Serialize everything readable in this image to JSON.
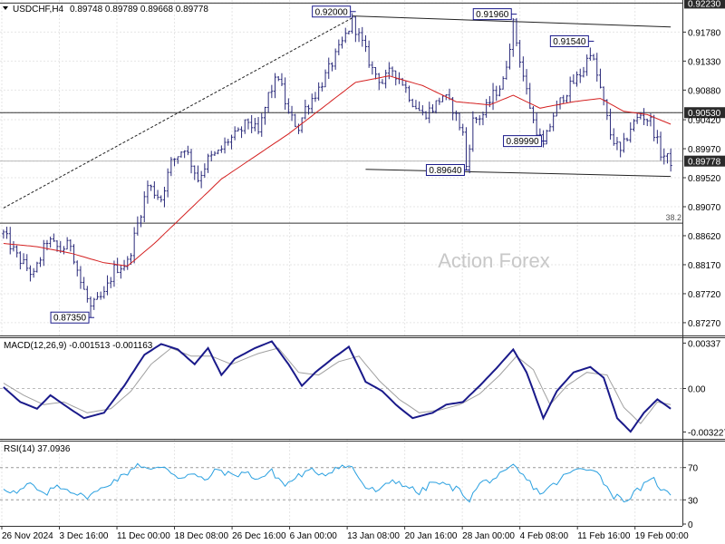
{
  "header": {
    "symbol": "USDCHF,H4",
    "ohlc": "0.89748 0.89789 0.89668 0.89778"
  },
  "watermark": "Action Forex",
  "colors": {
    "candle": "#2a2a7a",
    "ma": "#d42020",
    "macd": "#1a1a8a",
    "signal": "#a0a0a0",
    "grid": "#e6e6e6",
    "label_border": "#1a1a8a",
    "axis": "#333333"
  },
  "chart_data": [
    {
      "type": "line",
      "title": "USDCHF,H4",
      "price_axis": {
        "ticks": [
          "0.92230",
          "0.91780",
          "0.91330",
          "0.90880",
          "0.90530",
          "0.90420",
          "0.89970",
          "0.89778",
          "0.89520",
          "0.89070",
          "0.88620",
          "0.88170",
          "0.87720",
          "0.87270"
        ],
        "range": [
          0.871,
          0.9225
        ],
        "current_price": "0.89778",
        "highlighted": [
          "0.92230",
          "0.90530",
          "0.89778"
        ]
      },
      "x_axis": {
        "labels": [
          "26 Nov 2024",
          "3 Dec 16:00",
          "11 Dec 00:00",
          "18 Dec 08:00",
          "26 Dec 16:00",
          "6 Jan 00:00",
          "13 Jan 08:00",
          "20 Jan 16:00",
          "28 Jan 00:00",
          "4 Feb 08:00",
          "11 Feb 16:00",
          "19 Feb 00:00"
        ],
        "bar_count": 200
      },
      "swing_labels": [
        {
          "text": "0.87350",
          "bar": 26,
          "price": 0.8735
        },
        {
          "text": "0.92000",
          "bar": 104,
          "price": 0.92
        },
        {
          "text": "0.89640",
          "bar": 138,
          "price": 0.8964
        },
        {
          "text": "0.91960",
          "bar": 152,
          "price": 0.9196
        },
        {
          "text": "0.89990",
          "bar": 161,
          "price": 0.8999
        },
        {
          "text": "0.91540",
          "bar": 175,
          "price": 0.9154
        }
      ],
      "horizontal_lines": [
        {
          "price": 0.9223,
          "label": ""
        },
        {
          "price": 0.9053,
          "label": ""
        },
        {
          "price": 0.88815,
          "label": "38.2"
        },
        {
          "price": 0.89778,
          "label": ""
        }
      ],
      "trendlines": [
        {
          "from": {
            "bar": 0,
            "price": 0.8905
          },
          "to": {
            "bar": 104,
            "price": 0.92
          },
          "style": "dashed"
        },
        {
          "from": {
            "bar": 104,
            "price": 0.9203
          },
          "to": {
            "bar": 199,
            "price": 0.9186
          },
          "style": "solid"
        },
        {
          "from": {
            "bar": 108,
            "price": 0.8965
          },
          "to": {
            "bar": 199,
            "price": 0.8954
          },
          "style": "solid"
        }
      ],
      "anchors": [
        [
          0,
          0.8865
        ],
        [
          4,
          0.883
        ],
        [
          9,
          0.88
        ],
        [
          13,
          0.8855
        ],
        [
          17,
          0.884
        ],
        [
          20,
          0.885
        ],
        [
          23,
          0.879
        ],
        [
          26,
          0.875
        ],
        [
          30,
          0.877
        ],
        [
          33,
          0.881
        ],
        [
          37,
          0.882
        ],
        [
          40,
          0.888
        ],
        [
          43,
          0.894
        ],
        [
          47,
          0.892
        ],
        [
          50,
          0.8975
        ],
        [
          54,
          0.9
        ],
        [
          58,
          0.895
        ],
        [
          61,
          0.898
        ],
        [
          64,
          0.899
        ],
        [
          67,
          0.901
        ],
        [
          70,
          0.902
        ],
        [
          73,
          0.904
        ],
        [
          76,
          0.902
        ],
        [
          79,
          0.908
        ],
        [
          82,
          0.911
        ],
        [
          85,
          0.905
        ],
        [
          88,
          0.903
        ],
        [
          90,
          0.906
        ],
        [
          94,
          0.909
        ],
        [
          97,
          0.912
        ],
        [
          100,
          0.915
        ],
        [
          104,
          0.9195
        ],
        [
          107,
          0.916
        ],
        [
          110,
          0.912
        ],
        [
          113,
          0.91
        ],
        [
          116,
          0.912
        ],
        [
          119,
          0.91
        ],
        [
          122,
          0.907
        ],
        [
          125,
          0.905
        ],
        [
          128,
          0.906
        ],
        [
          131,
          0.908
        ],
        [
          134,
          0.906
        ],
        [
          137,
          0.902
        ],
        [
          138,
          0.897
        ],
        [
          140,
          0.904
        ],
        [
          143,
          0.905
        ],
        [
          146,
          0.908
        ],
        [
          149,
          0.91
        ],
        [
          152,
          0.919
        ],
        [
          155,
          0.911
        ],
        [
          158,
          0.904
        ],
        [
          161,
          0.9
        ],
        [
          164,
          0.905
        ],
        [
          167,
          0.908
        ],
        [
          170,
          0.91
        ],
        [
          173,
          0.912
        ],
        [
          175,
          0.915
        ],
        [
          178,
          0.909
        ],
        [
          181,
          0.902
        ],
        [
          184,
          0.899
        ],
        [
          187,
          0.903
        ],
        [
          190,
          0.905
        ],
        [
          193,
          0.904
        ],
        [
          196,
          0.899
        ],
        [
          199,
          0.89778
        ]
      ],
      "ma": [
        [
          0,
          0.885
        ],
        [
          10,
          0.8845
        ],
        [
          20,
          0.8835
        ],
        [
          30,
          0.882
        ],
        [
          37,
          0.8815
        ],
        [
          45,
          0.885
        ],
        [
          55,
          0.89
        ],
        [
          65,
          0.895
        ],
        [
          75,
          0.8985
        ],
        [
          85,
          0.902
        ],
        [
          95,
          0.906
        ],
        [
          105,
          0.91
        ],
        [
          115,
          0.911
        ],
        [
          125,
          0.9095
        ],
        [
          135,
          0.907
        ],
        [
          145,
          0.9065
        ],
        [
          152,
          0.908
        ],
        [
          160,
          0.906
        ],
        [
          170,
          0.907
        ],
        [
          178,
          0.9075
        ],
        [
          185,
          0.9055
        ],
        [
          192,
          0.905
        ],
        [
          199,
          0.9035
        ]
      ]
    },
    {
      "type": "line",
      "title": "MACD(12,26,9) -0.001513 -0.001163",
      "y_ticks": [
        "0.00337",
        "0.00",
        "-0.003227"
      ],
      "range": [
        -0.0036,
        0.0036
      ],
      "macd": [
        [
          0,
          0.0001
        ],
        [
          5,
          -0.001
        ],
        [
          10,
          -0.0015
        ],
        [
          14,
          -0.0005
        ],
        [
          18,
          -0.0012
        ],
        [
          24,
          -0.0022
        ],
        [
          30,
          -0.0018
        ],
        [
          36,
          0.0002
        ],
        [
          42,
          0.0025
        ],
        [
          47,
          0.0033
        ],
        [
          52,
          0.0029
        ],
        [
          57,
          0.0018
        ],
        [
          61,
          0.003
        ],
        [
          65,
          0.001
        ],
        [
          69,
          0.0022
        ],
        [
          75,
          0.003
        ],
        [
          80,
          0.0035
        ],
        [
          85,
          0.0018
        ],
        [
          89,
          0.0002
        ],
        [
          93,
          0.0012
        ],
        [
          98,
          0.0022
        ],
        [
          103,
          0.0031
        ],
        [
          108,
          0.0005
        ],
        [
          113,
          -0.0002
        ],
        [
          117,
          -0.0012
        ],
        [
          122,
          -0.0022
        ],
        [
          128,
          -0.0018
        ],
        [
          132,
          -0.0012
        ],
        [
          137,
          -0.001
        ],
        [
          142,
          0.0002
        ],
        [
          147,
          0.0015
        ],
        [
          152,
          0.0029
        ],
        [
          156,
          0.0012
        ],
        [
          161,
          -0.0022
        ],
        [
          165,
          -0.0002
        ],
        [
          170,
          0.0012
        ],
        [
          175,
          0.0016
        ],
        [
          179,
          0.0008
        ],
        [
          183,
          -0.0022
        ],
        [
          187,
          -0.0032
        ],
        [
          191,
          -0.0018
        ],
        [
          195,
          -0.0008
        ],
        [
          199,
          -0.0015
        ]
      ],
      "signal": [
        [
          0,
          0.0004
        ],
        [
          6,
          -0.0005
        ],
        [
          12,
          -0.0012
        ],
        [
          18,
          -0.001
        ],
        [
          25,
          -0.0018
        ],
        [
          32,
          -0.0015
        ],
        [
          38,
          -0.0002
        ],
        [
          44,
          0.0018
        ],
        [
          50,
          0.003
        ],
        [
          56,
          0.0024
        ],
        [
          62,
          0.0024
        ],
        [
          68,
          0.0018
        ],
        [
          76,
          0.0026
        ],
        [
          82,
          0.003
        ],
        [
          88,
          0.0012
        ],
        [
          94,
          0.001
        ],
        [
          100,
          0.002
        ],
        [
          106,
          0.0024
        ],
        [
          112,
          0.0006
        ],
        [
          118,
          -0.0008
        ],
        [
          124,
          -0.0018
        ],
        [
          130,
          -0.0016
        ],
        [
          136,
          -0.0012
        ],
        [
          142,
          -0.0004
        ],
        [
          148,
          0.001
        ],
        [
          153,
          0.0024
        ],
        [
          158,
          0.0014
        ],
        [
          163,
          -0.0012
        ],
        [
          168,
          0.0002
        ],
        [
          174,
          0.0012
        ],
        [
          180,
          0.001
        ],
        [
          185,
          -0.0014
        ],
        [
          190,
          -0.0026
        ],
        [
          195,
          -0.001
        ],
        [
          199,
          -0.0012
        ]
      ]
    },
    {
      "type": "line",
      "title": "RSI(14) 37.0936",
      "y_ticks": [
        "70",
        "30",
        "0"
      ],
      "range": [
        0,
        100
      ],
      "levels": [
        70,
        30
      ],
      "rsi": [
        [
          0,
          45
        ],
        [
          4,
          38
        ],
        [
          8,
          50
        ],
        [
          12,
          35
        ],
        [
          16,
          48
        ],
        [
          20,
          42
        ],
        [
          24,
          33
        ],
        [
          28,
          40
        ],
        [
          32,
          52
        ],
        [
          36,
          60
        ],
        [
          40,
          75
        ],
        [
          44,
          66
        ],
        [
          48,
          72
        ],
        [
          52,
          58
        ],
        [
          56,
          62
        ],
        [
          60,
          54
        ],
        [
          64,
          68
        ],
        [
          68,
          60
        ],
        [
          72,
          64
        ],
        [
          76,
          56
        ],
        [
          80,
          65
        ],
        [
          84,
          48
        ],
        [
          88,
          60
        ],
        [
          92,
          66
        ],
        [
          96,
          62
        ],
        [
          100,
          72
        ],
        [
          104,
          70
        ],
        [
          108,
          45
        ],
        [
          112,
          40
        ],
        [
          116,
          55
        ],
        [
          120,
          48
        ],
        [
          124,
          38
        ],
        [
          128,
          52
        ],
        [
          132,
          48
        ],
        [
          136,
          42
        ],
        [
          139,
          30
        ],
        [
          142,
          50
        ],
        [
          146,
          56
        ],
        [
          150,
          64
        ],
        [
          152,
          72
        ],
        [
          156,
          55
        ],
        [
          160,
          38
        ],
        [
          164,
          48
        ],
        [
          168,
          62
        ],
        [
          172,
          68
        ],
        [
          176,
          70
        ],
        [
          179,
          52
        ],
        [
          182,
          35
        ],
        [
          186,
          30
        ],
        [
          190,
          45
        ],
        [
          194,
          55
        ],
        [
          197,
          40
        ],
        [
          199,
          37
        ]
      ]
    }
  ]
}
